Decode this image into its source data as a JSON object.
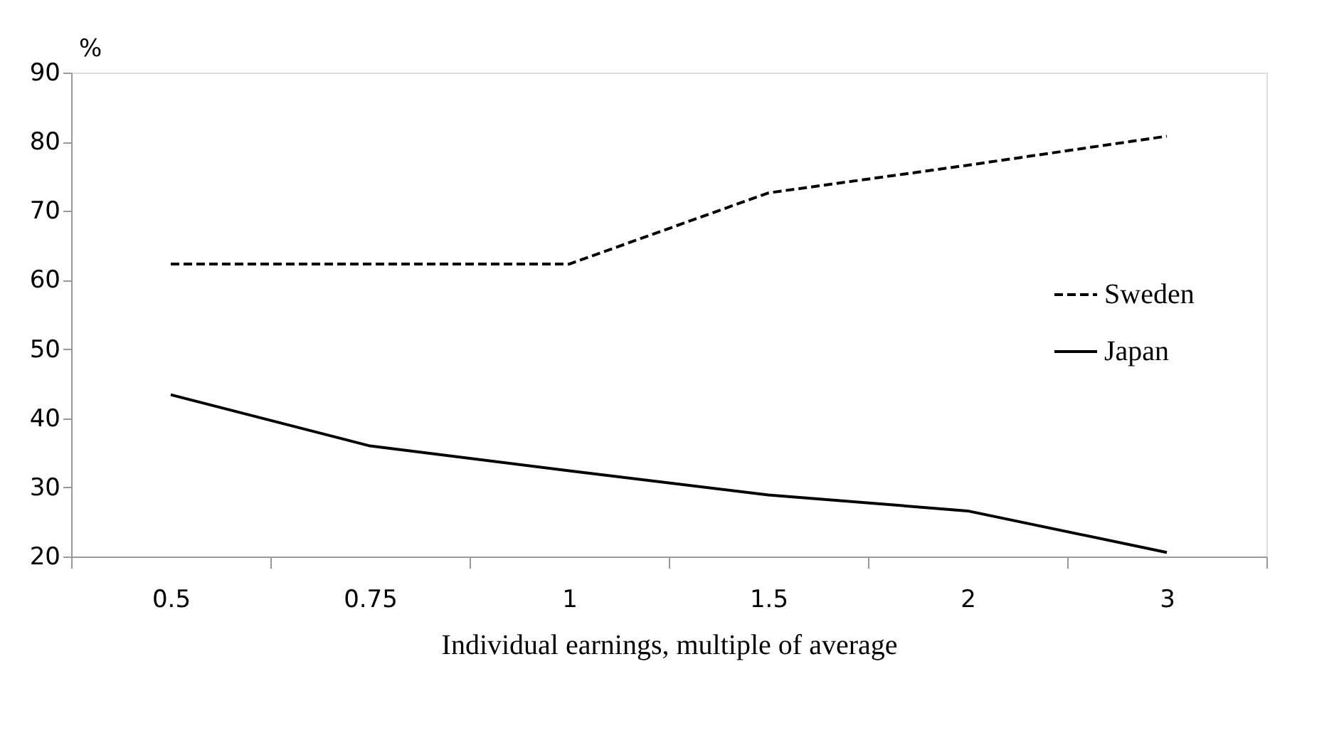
{
  "chart_data": {
    "type": "line",
    "xlabel": "Individual earnings, multiple  of average",
    "ylabel": "%",
    "categories": [
      "0.5",
      "0.75",
      "1",
      "1.5",
      "2",
      "3"
    ],
    "series": [
      {
        "name": "Sweden",
        "color": "#000000",
        "line_style": "dashed",
        "values": [
          62.3,
          62.3,
          62.3,
          72.6,
          76.6,
          80.8
        ]
      },
      {
        "name": "Japan",
        "color": "#000000",
        "line_style": "solid",
        "values": [
          43.4,
          36,
          32.4,
          28.9,
          26.6,
          20.6
        ]
      }
    ],
    "ylim": [
      20,
      90
    ],
    "yticks": [
      20,
      30,
      40,
      50,
      60,
      70,
      80,
      90
    ],
    "grid": false,
    "legend": "right",
    "marker": "none"
  }
}
